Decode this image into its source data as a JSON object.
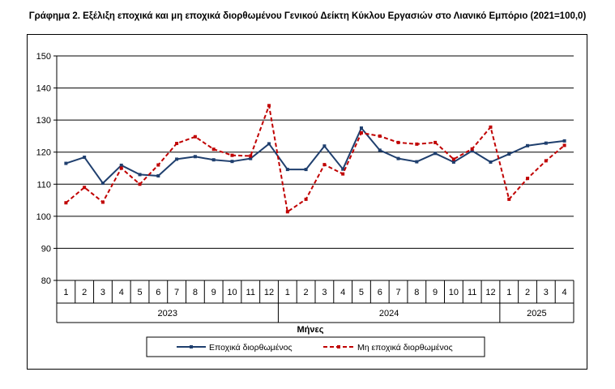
{
  "title": "Γράφημα 2. Εξέλιξη εποχικά και μη εποχικά διορθωμένου Γενικού Δείκτη Κύκλου Εργασιών στο Λιανικό Εμπόριο (2021=100,0)",
  "chart_data": {
    "type": "line",
    "title": "Γράφημα 2. Εξέλιξη εποχικά και μη εποχικά διορθωμένου Γενικού Δείκτη Κύκλου Εργασιών στο Λιανικό Εμπόριο (2021=100,0)",
    "xlabel": "Μήνες",
    "ylabel": "",
    "ylim": [
      80,
      150
    ],
    "yticks": [
      80,
      90,
      100,
      110,
      120,
      130,
      140,
      150
    ],
    "grid": true,
    "legend_position": "bottom",
    "categories": [
      "1",
      "2",
      "3",
      "4",
      "5",
      "6",
      "7",
      "8",
      "9",
      "10",
      "11",
      "12",
      "1",
      "2",
      "3",
      "4",
      "5",
      "6",
      "7",
      "8",
      "9",
      "10",
      "11",
      "12",
      "1",
      "2",
      "3",
      "4"
    ],
    "years": [
      {
        "label": "2023",
        "months": 12
      },
      {
        "label": "2024",
        "months": 12
      },
      {
        "label": "2025",
        "months": 4
      }
    ],
    "series": [
      {
        "name": "Εποχικά διορθωμένος",
        "color": "#1f3f6e",
        "style": "solid",
        "marker": "square",
        "values": [
          116.5,
          118.4,
          110.3,
          115.9,
          113.0,
          112.6,
          117.8,
          118.6,
          117.6,
          117.1,
          118.0,
          122.6,
          114.6,
          114.6,
          121.9,
          114.7,
          127.5,
          120.6,
          118.0,
          117.0,
          119.6,
          116.9,
          120.4,
          116.9,
          119.4,
          122.0,
          122.8,
          123.5
        ]
      },
      {
        "name": "Μη εποχικά διορθωμένος",
        "color": "#c00000",
        "style": "dashed",
        "marker": "square",
        "values": [
          104.2,
          109.0,
          104.4,
          115.0,
          110.0,
          116.0,
          122.7,
          124.8,
          120.9,
          119.0,
          118.8,
          134.5,
          101.4,
          105.3,
          116.1,
          113.2,
          126.0,
          125.0,
          123.0,
          122.5,
          123.0,
          117.8,
          121.0,
          127.8,
          105.3,
          111.8,
          117.3,
          122.1
        ]
      }
    ]
  }
}
